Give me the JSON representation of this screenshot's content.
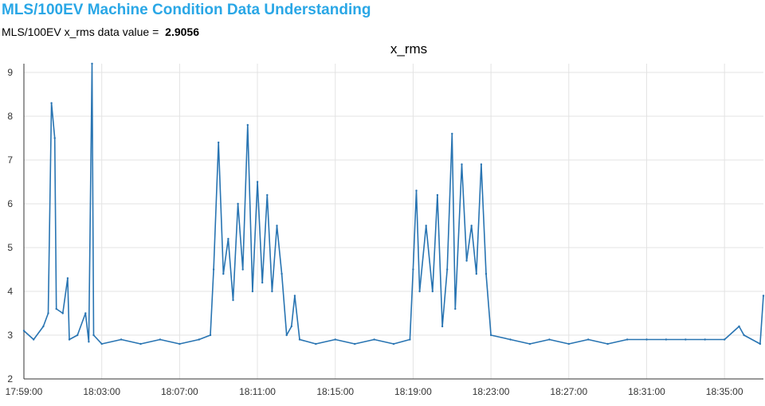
{
  "header": {
    "title": "MLS/100EV Machine Condition Data Understanding",
    "value_label": "MLS/100EV x_rms data value =",
    "value": "2.9056"
  },
  "colors": {
    "title": "#2aa7e6",
    "series": "#2874b2"
  },
  "chart_data": {
    "type": "line",
    "title": "x_rms",
    "xlabel": "",
    "ylabel": "",
    "ylim": [
      2,
      9.2
    ],
    "y_ticks": [
      2,
      3,
      4,
      5,
      6,
      7,
      8,
      9
    ],
    "x_range": [
      "17:59:00",
      "18:37:00"
    ],
    "x_ticks": [
      "17:59:00",
      "18:03:00",
      "18:07:00",
      "18:11:00",
      "18:15:00",
      "18:19:00",
      "18:23:00",
      "18:27:00",
      "18:31:00",
      "18:35:00"
    ],
    "grid": true,
    "series": [
      {
        "name": "",
        "points": [
          [
            "17:59:00",
            3.1
          ],
          [
            "17:59:30",
            2.9
          ],
          [
            "18:00:00",
            3.2
          ],
          [
            "18:00:15",
            3.5
          ],
          [
            "18:00:25",
            8.3
          ],
          [
            "18:00:35",
            7.5
          ],
          [
            "18:00:40",
            3.6
          ],
          [
            "18:01:00",
            3.5
          ],
          [
            "18:01:15",
            4.3
          ],
          [
            "18:01:20",
            2.9
          ],
          [
            "18:01:45",
            3.0
          ],
          [
            "18:02:10",
            3.5
          ],
          [
            "18:02:20",
            2.85
          ],
          [
            "18:02:30",
            9.2
          ],
          [
            "18:02:35",
            3.0
          ],
          [
            "18:03:00",
            2.8
          ],
          [
            "18:04:00",
            2.9
          ],
          [
            "18:05:00",
            2.8
          ],
          [
            "18:06:00",
            2.9
          ],
          [
            "18:07:00",
            2.8
          ],
          [
            "18:08:00",
            2.9
          ],
          [
            "18:08:35",
            3.0
          ],
          [
            "18:08:45",
            4.5
          ],
          [
            "18:09:00",
            7.4
          ],
          [
            "18:09:15",
            4.4
          ],
          [
            "18:09:30",
            5.2
          ],
          [
            "18:09:45",
            3.8
          ],
          [
            "18:10:00",
            6.0
          ],
          [
            "18:10:15",
            4.5
          ],
          [
            "18:10:30",
            7.8
          ],
          [
            "18:10:45",
            4.0
          ],
          [
            "18:11:00",
            6.5
          ],
          [
            "18:11:15",
            4.2
          ],
          [
            "18:11:30",
            6.2
          ],
          [
            "18:11:45",
            4.0
          ],
          [
            "18:12:00",
            5.5
          ],
          [
            "18:12:15",
            4.4
          ],
          [
            "18:12:30",
            3.0
          ],
          [
            "18:12:45",
            3.2
          ],
          [
            "18:12:55",
            3.9
          ],
          [
            "18:13:10",
            2.9
          ],
          [
            "18:14:00",
            2.8
          ],
          [
            "18:15:00",
            2.9
          ],
          [
            "18:16:00",
            2.8
          ],
          [
            "18:17:00",
            2.9
          ],
          [
            "18:18:00",
            2.8
          ],
          [
            "18:18:50",
            2.9
          ],
          [
            "18:19:00",
            4.5
          ],
          [
            "18:19:10",
            6.3
          ],
          [
            "18:19:20",
            4.0
          ],
          [
            "18:19:40",
            5.5
          ],
          [
            "18:20:00",
            4.0
          ],
          [
            "18:20:15",
            6.2
          ],
          [
            "18:20:30",
            3.2
          ],
          [
            "18:20:45",
            4.5
          ],
          [
            "18:21:00",
            7.6
          ],
          [
            "18:21:10",
            3.6
          ],
          [
            "18:21:30",
            6.9
          ],
          [
            "18:21:45",
            4.7
          ],
          [
            "18:22:00",
            5.5
          ],
          [
            "18:22:15",
            4.4
          ],
          [
            "18:22:30",
            6.9
          ],
          [
            "18:22:45",
            4.4
          ],
          [
            "18:23:00",
            3.0
          ],
          [
            "18:24:00",
            2.9
          ],
          [
            "18:25:00",
            2.8
          ],
          [
            "18:26:00",
            2.9
          ],
          [
            "18:27:00",
            2.8
          ],
          [
            "18:28:00",
            2.9
          ],
          [
            "18:29:00",
            2.8
          ],
          [
            "18:30:00",
            2.9
          ],
          [
            "18:31:00",
            2.9
          ],
          [
            "18:32:00",
            2.9
          ],
          [
            "18:33:00",
            2.9
          ],
          [
            "18:34:00",
            2.9
          ],
          [
            "18:35:00",
            2.9
          ],
          [
            "18:35:45",
            3.2
          ],
          [
            "18:36:00",
            3.0
          ],
          [
            "18:36:50",
            2.8
          ],
          [
            "18:37:00",
            3.9
          ]
        ]
      }
    ]
  }
}
